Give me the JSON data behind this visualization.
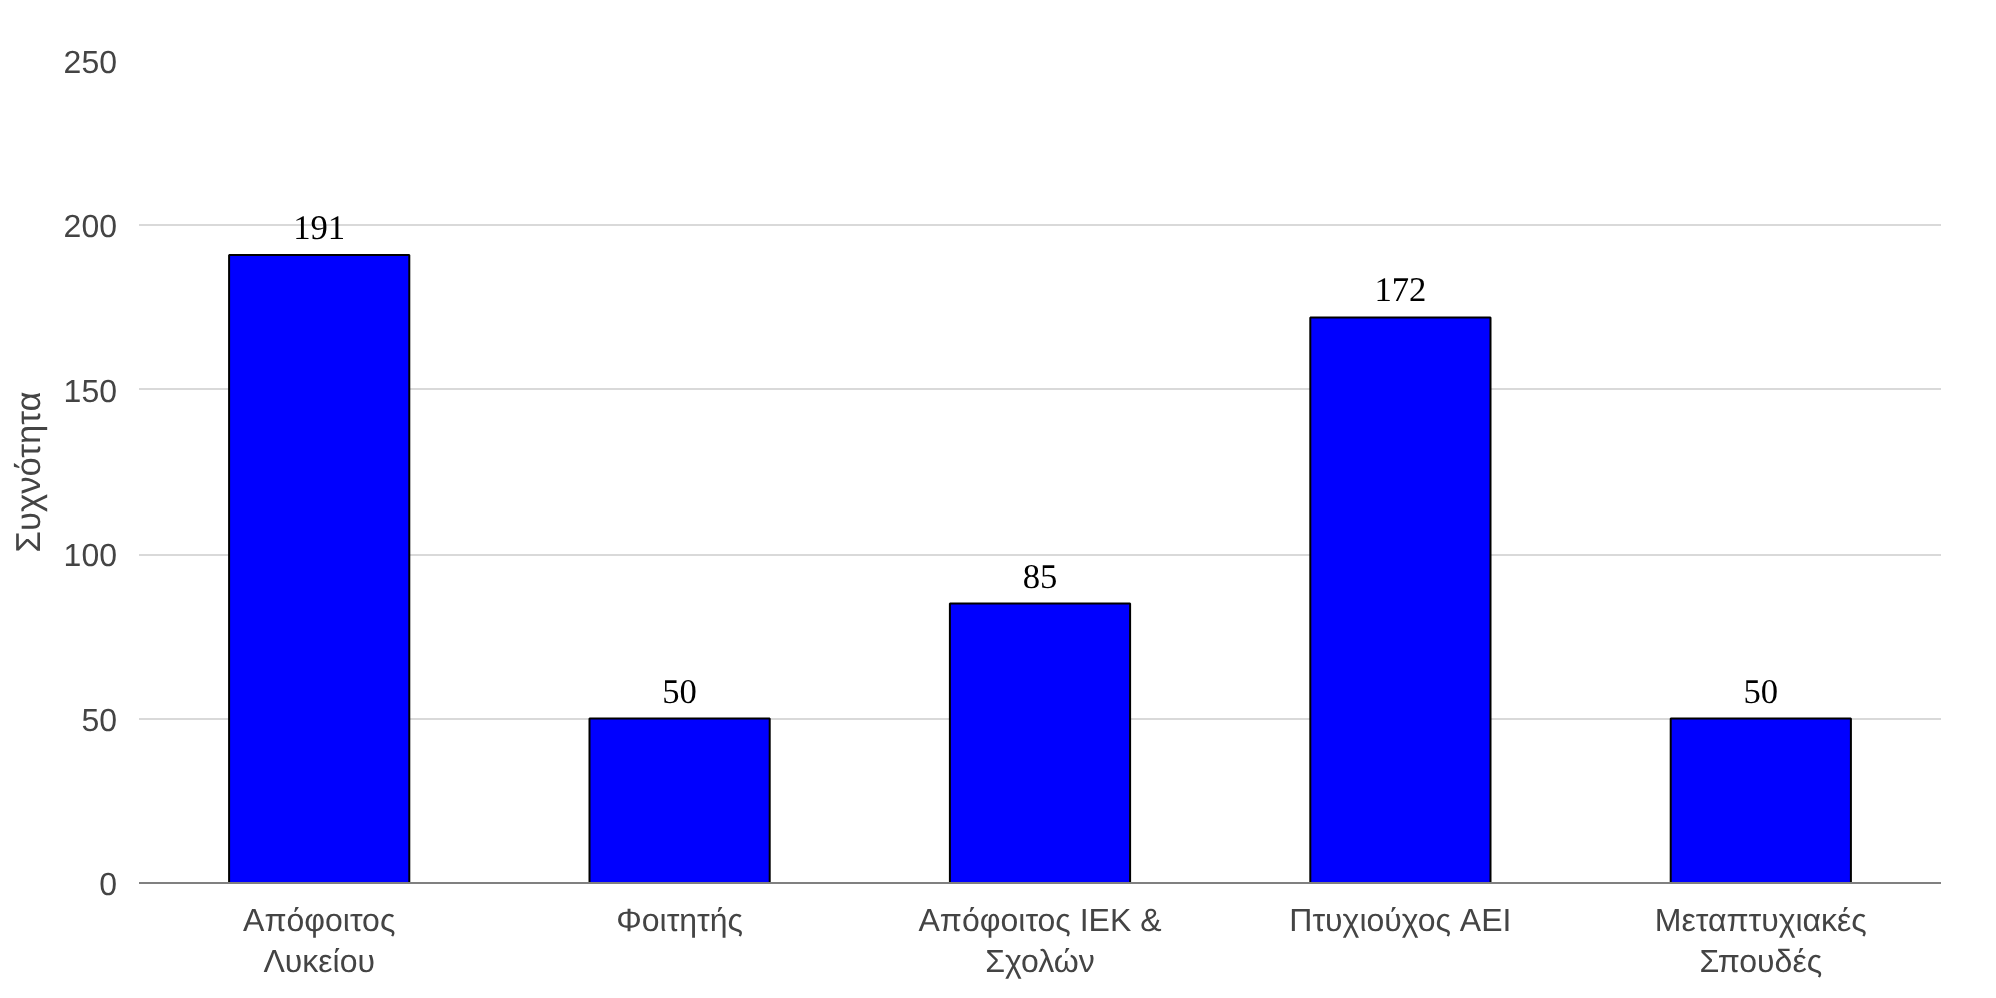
{
  "chart_data": {
    "type": "bar",
    "ylabel": "Συχνότητα",
    "categories": [
      "Απόφοιτος Λυκείου",
      "Φοιτητής",
      "Απόφοιτος IEK & Σχολών",
      "Πτυχιούχος AEI",
      "Μεταπτυχιακές Σπουδές"
    ],
    "values": [
      191,
      50,
      85,
      172,
      50
    ],
    "color": "#0000ff",
    "ylim": [
      0,
      250
    ],
    "yticks": [
      0,
      50,
      100,
      150,
      200,
      250
    ],
    "grid": "y",
    "data_labels": true
  }
}
